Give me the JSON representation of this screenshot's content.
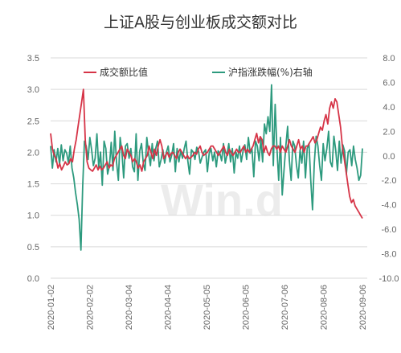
{
  "chart_data": {
    "type": "line",
    "title": "上证A股与创业板成交额对比",
    "watermark": "Win.d",
    "xlabel": "",
    "y_left": {
      "label": "",
      "range": [
        0.0,
        3.5
      ],
      "ticks": [
        "0.0",
        "0.5",
        "1.0",
        "1.5",
        "2.0",
        "2.5",
        "3.0",
        "3.5"
      ]
    },
    "y_right": {
      "label": "",
      "range": [
        -10.0,
        8.0
      ],
      "ticks": [
        "-10.0",
        "-8.0",
        "-6.0",
        "-4.0",
        "-2.0",
        "0.0",
        "2.0",
        "4.0",
        "6.0",
        "8.0"
      ]
    },
    "x_ticks": [
      "2020-01-02",
      "2020-02-02",
      "2020-03-04",
      "2020-04-04",
      "2020-05-05",
      "2020-06-05",
      "2020-07-06",
      "2020-08-06",
      "2020-09-06"
    ],
    "grid": true,
    "legend_position": "top",
    "series": [
      {
        "name": "成交额比值",
        "axis": "left",
        "color": "#d63447",
        "values": [
          2.3,
          2.05,
          1.95,
          1.9,
          1.75,
          1.82,
          1.72,
          1.78,
          1.85,
          1.8,
          1.82,
          1.9,
          1.85,
          2.05,
          2.2,
          2.4,
          2.6,
          2.8,
          3.0,
          2.2,
          1.85,
          1.75,
          1.72,
          1.7,
          1.75,
          1.8,
          1.72,
          1.78,
          1.72,
          1.75,
          1.8,
          1.85,
          1.75,
          1.8,
          1.78,
          1.9,
          1.95,
          2.0,
          2.05,
          2.1,
          1.95,
          1.9,
          2.05,
          2.0,
          1.95,
          1.85,
          1.9,
          1.85,
          1.75,
          1.8,
          1.7,
          1.85,
          1.9,
          1.95,
          2.1,
          2.0,
          1.9,
          2.05,
          1.95,
          2.1,
          2.2,
          2.1,
          1.9,
          1.95,
          2.0,
          1.92,
          1.98,
          2.0,
          1.95,
          1.9,
          2.0,
          2.05,
          2.0,
          1.95,
          1.9,
          1.95,
          1.9,
          1.92,
          1.95,
          2.0,
          1.97,
          2.05,
          2.1,
          2.0,
          1.95,
          1.98,
          2.0,
          2.05,
          2.1,
          2.1,
          2.05,
          2.0,
          1.95,
          2.0,
          2.05,
          2.1,
          2.0,
          1.95,
          2.05,
          2.0,
          1.95,
          2.0,
          2.05,
          2.0,
          2.0,
          2.05,
          2.1,
          2.0,
          2.05,
          2.0,
          2.05,
          2.1,
          2.2,
          2.3,
          2.15,
          2.25,
          2.2,
          2.0,
          2.1,
          2.0,
          1.95,
          2.05,
          2.1,
          2.1,
          2.05,
          2.1,
          2.0,
          2.1,
          2.05,
          2.0,
          2.1,
          2.2,
          2.1,
          2.05,
          2.0,
          2.1,
          2.2,
          2.05,
          2.1,
          2.0,
          2.1,
          2.1,
          2.15,
          2.2,
          2.25,
          2.15,
          2.2,
          2.3,
          2.4,
          2.35,
          2.5,
          2.6,
          2.45,
          2.7,
          2.8,
          2.7,
          2.85,
          2.8,
          2.6,
          2.4,
          2.1,
          1.9,
          1.7,
          1.5,
          1.3,
          1.2,
          1.25,
          1.15,
          1.1,
          1.05,
          1.0,
          0.95
        ]
      },
      {
        "name": "沪指涨跌幅(%)右轴",
        "axis": "right",
        "color": "#2d9a7e",
        "values": [
          0.8,
          -1.0,
          0.5,
          -0.5,
          0.6,
          -0.7,
          0.9,
          -0.4,
          0.5,
          0.2,
          -0.6,
          0.8,
          -1.0,
          -1.8,
          -3.0,
          -4.0,
          -5.2,
          -7.7,
          -2.5,
          1.2,
          0.8,
          -0.3,
          1.5,
          0.5,
          -0.8,
          -0.2,
          1.8,
          -1.0,
          0.3,
          -2.4,
          1.2,
          0.6,
          -1.5,
          -0.8,
          1.1,
          -1.2,
          2.0,
          -0.5,
          -2.0,
          1.5,
          0.3,
          -1.8,
          0.8,
          1.0,
          -0.2,
          0.6,
          -0.9,
          -1.3,
          1.8,
          -2.0,
          0.4,
          1.0,
          -0.6,
          -1.2,
          1.5,
          0.2,
          -0.8,
          1.0,
          -0.4,
          0.6,
          1.2,
          -0.9,
          -0.3,
          0.5,
          -0.6,
          0.3,
          0.8,
          -0.5,
          0.1,
          1.0,
          -1.3,
          0.6,
          -0.5,
          0.4,
          -0.2,
          0.6,
          1.2,
          -0.4,
          -1.5,
          0.5,
          0.3,
          -0.3,
          0.7,
          0.4,
          -0.6,
          -0.1,
          0.3,
          0.5,
          -1.3,
          0.2,
          0.6,
          -0.4,
          0.3,
          -0.9,
          0.4,
          0.2,
          -0.4,
          1.0,
          -0.6,
          0.1,
          1.0,
          -0.5,
          0.6,
          -1.4,
          0.3,
          -0.2,
          0.8,
          -0.5,
          0.4,
          0.9,
          -0.3,
          1.5,
          0.2,
          0.6,
          -1.7,
          1.2,
          0.8,
          -0.4,
          1.4,
          -0.5,
          2.6,
          1.8,
          3.2,
          2.0,
          5.8,
          -0.8,
          4.2,
          0.6,
          -2.0,
          1.5,
          -3.2,
          -1.2,
          0.8,
          2.4,
          -0.4,
          -2.0,
          1.2,
          0.8,
          -0.8,
          -1.8,
          0.5,
          -0.6,
          1.2,
          -1.8,
          0.6,
          1.0,
          -2.0,
          -4.4,
          -0.6,
          1.6,
          0.8,
          -0.8,
          -2.0,
          1.0,
          -0.4,
          0.6,
          2.0,
          -0.5,
          -0.9,
          1.6,
          0.5,
          -1.2,
          1.2,
          -0.6,
          0.9,
          0.4,
          -1.5,
          0.3,
          0.5,
          -0.8,
          0.8,
          -0.3,
          -1.0,
          -2.0,
          -1.6,
          0.6
        ]
      }
    ]
  }
}
